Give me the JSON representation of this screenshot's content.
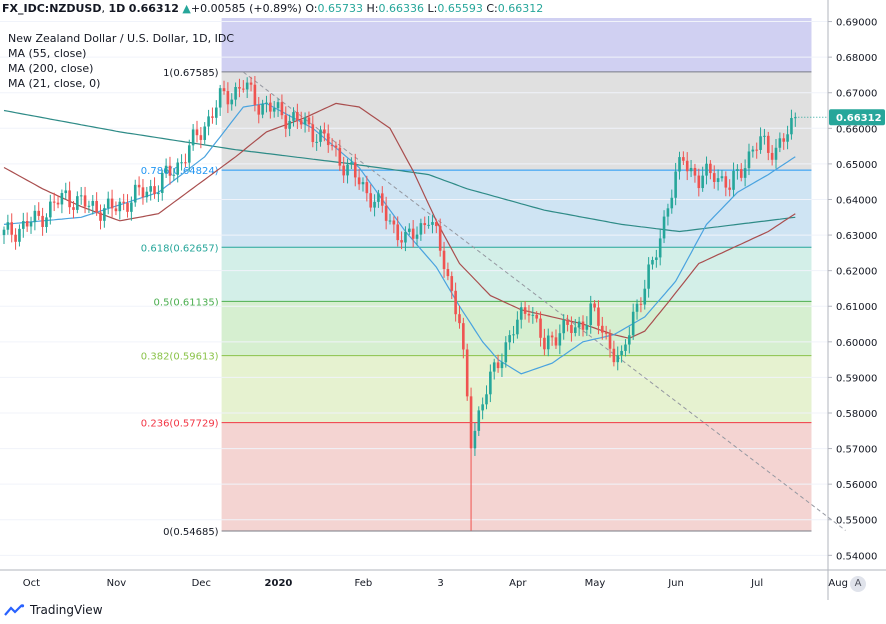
{
  "header": {
    "symbol": "FX_IDC:NZDUSD",
    "interval": "1D",
    "last": "0.66312",
    "change": "+0.00585 (+0.89%)",
    "o_label": "O:",
    "o": "0.65733",
    "h_label": "H:",
    "h": "0.66336",
    "l_label": "L:",
    "l": "0.65593",
    "c_label": "C:",
    "c": "0.66312"
  },
  "indicators": [
    "New Zealand Dollar / U.S. Dollar, 1D, IDC",
    "MA (55, close)",
    "MA (200, close)",
    "MA (21, close, 0)"
  ],
  "footer": {
    "brand": "TradingView"
  },
  "axis_button": "A",
  "colors": {
    "up": "#26a69a",
    "down": "#ef5350",
    "ma55": "#4aa3df",
    "ma200": "#2e8b87",
    "ma21": "#a94e4e",
    "price_tag": "#26a69a"
  },
  "chart_data": {
    "type": "candlestick",
    "price_range": [
      0.537,
      0.691
    ],
    "y_ticks": [
      "0.69000",
      "0.68000",
      "0.67000",
      "0.66000",
      "0.65000",
      "0.64000",
      "0.63000",
      "0.62000",
      "0.61000",
      "0.60000",
      "0.59000",
      "0.58000",
      "0.57000",
      "0.56000",
      "0.55000",
      "0.54000"
    ],
    "y_tick_values": [
      0.69,
      0.68,
      0.67,
      0.66,
      0.65,
      0.64,
      0.63,
      0.62,
      0.61,
      0.6,
      0.59,
      0.58,
      0.57,
      0.56,
      0.55,
      0.54
    ],
    "last_price_label": "0.66312",
    "last_price": 0.66312,
    "x_labels": [
      "Oct",
      "Nov",
      "Dec",
      "2020",
      "Feb",
      "3",
      "Apr",
      "May",
      "Jun",
      "Jul",
      "Aug"
    ],
    "x_label_index": [
      4,
      26,
      48,
      68,
      90,
      110,
      130,
      150,
      171,
      192,
      213
    ],
    "bar_count": 206,
    "fibonacci": [
      {
        "label": "1(0.67585)",
        "value": 0.67585,
        "color": "#787b86",
        "fill": "#e0e0e0"
      },
      {
        "label": "0.786(0.64824)",
        "value": 0.64824,
        "color": "#2196f3",
        "fill": "#cfe4f3"
      },
      {
        "label": "0.618(0.62657)",
        "value": 0.62657,
        "color": "#26a69a",
        "fill": "#d3efe8"
      },
      {
        "label": "0.5(0.61135)",
        "value": 0.61135,
        "color": "#4caf50",
        "fill": "#d6efd0"
      },
      {
        "label": "0.382(0.59613)",
        "value": 0.59613,
        "color": "#8bc34a",
        "fill": "#e6f2d0"
      },
      {
        "label": "0.236(0.57729)",
        "value": 0.57729,
        "color": "#f23645",
        "fill": "#f4d4d2"
      },
      {
        "label": "0(0.54685)",
        "value": 0.54685,
        "color": "#787b86",
        "fill": null
      }
    ],
    "fib_top_band": {
      "from": 0.67585,
      "to": 0.691,
      "fill": "#d0d0f2"
    },
    "fib_range_index": [
      60,
      218
    ],
    "trend_line": {
      "from_index": 62,
      "from_value": 0.6758,
      "to_index": 218,
      "to_value": 0.547
    },
    "close_anchors": [
      [
        0,
        0.63
      ],
      [
        8,
        0.634
      ],
      [
        16,
        0.641
      ],
      [
        22,
        0.638
      ],
      [
        28,
        0.637
      ],
      [
        34,
        0.641
      ],
      [
        40,
        0.644
      ],
      [
        46,
        0.651
      ],
      [
        52,
        0.661
      ],
      [
        56,
        0.668
      ],
      [
        62,
        0.672
      ],
      [
        66,
        0.667
      ],
      [
        72,
        0.664
      ],
      [
        78,
        0.661
      ],
      [
        84,
        0.656
      ],
      [
        88,
        0.65
      ],
      [
        92,
        0.645
      ],
      [
        98,
        0.637
      ],
      [
        104,
        0.628
      ],
      [
        110,
        0.635
      ],
      [
        114,
        0.623
      ],
      [
        118,
        0.605
      ],
      [
        121,
        0.573
      ],
      [
        124,
        0.583
      ],
      [
        128,
        0.595
      ],
      [
        132,
        0.603
      ],
      [
        136,
        0.611
      ],
      [
        140,
        0.598
      ],
      [
        144,
        0.604
      ],
      [
        148,
        0.603
      ],
      [
        152,
        0.609
      ],
      [
        156,
        0.601
      ],
      [
        160,
        0.594
      ],
      [
        163,
        0.608
      ],
      [
        168,
        0.621
      ],
      [
        172,
        0.639
      ],
      [
        176,
        0.652
      ],
      [
        180,
        0.645
      ],
      [
        184,
        0.648
      ],
      [
        188,
        0.643
      ],
      [
        192,
        0.651
      ],
      [
        196,
        0.656
      ],
      [
        200,
        0.654
      ],
      [
        203,
        0.658
      ],
      [
        205,
        0.66312
      ]
    ],
    "ma55_anchors": [
      [
        0,
        0.633
      ],
      [
        20,
        0.635
      ],
      [
        40,
        0.642
      ],
      [
        52,
        0.652
      ],
      [
        62,
        0.666
      ],
      [
        68,
        0.667
      ],
      [
        80,
        0.66
      ],
      [
        92,
        0.649
      ],
      [
        104,
        0.631
      ],
      [
        112,
        0.621
      ],
      [
        118,
        0.61
      ],
      [
        124,
        0.6
      ],
      [
        128,
        0.595
      ],
      [
        134,
        0.591
      ],
      [
        142,
        0.594
      ],
      [
        150,
        0.6
      ],
      [
        158,
        0.602
      ],
      [
        166,
        0.607
      ],
      [
        174,
        0.617
      ],
      [
        182,
        0.633
      ],
      [
        190,
        0.642
      ],
      [
        198,
        0.647
      ],
      [
        205,
        0.652
      ]
    ],
    "ma200_anchors": [
      [
        0,
        0.665
      ],
      [
        30,
        0.659
      ],
      [
        60,
        0.654
      ],
      [
        90,
        0.65
      ],
      [
        110,
        0.647
      ],
      [
        120,
        0.643
      ],
      [
        140,
        0.637
      ],
      [
        160,
        0.633
      ],
      [
        175,
        0.631
      ],
      [
        190,
        0.633
      ],
      [
        205,
        0.635
      ]
    ],
    "ma21_anchors": [
      [
        0,
        0.649
      ],
      [
        10,
        0.643
      ],
      [
        20,
        0.638
      ],
      [
        30,
        0.634
      ],
      [
        40,
        0.636
      ],
      [
        50,
        0.644
      ],
      [
        60,
        0.652
      ],
      [
        68,
        0.659
      ],
      [
        78,
        0.663
      ],
      [
        86,
        0.667
      ],
      [
        92,
        0.666
      ],
      [
        100,
        0.66
      ],
      [
        106,
        0.648
      ],
      [
        112,
        0.634
      ],
      [
        118,
        0.622
      ],
      [
        126,
        0.613
      ],
      [
        134,
        0.609
      ],
      [
        142,
        0.607
      ],
      [
        150,
        0.605
      ],
      [
        158,
        0.602
      ],
      [
        162,
        0.601
      ],
      [
        166,
        0.603
      ],
      [
        172,
        0.611
      ],
      [
        180,
        0.622
      ],
      [
        190,
        0.627
      ],
      [
        198,
        0.631
      ],
      [
        205,
        0.636
      ]
    ]
  }
}
